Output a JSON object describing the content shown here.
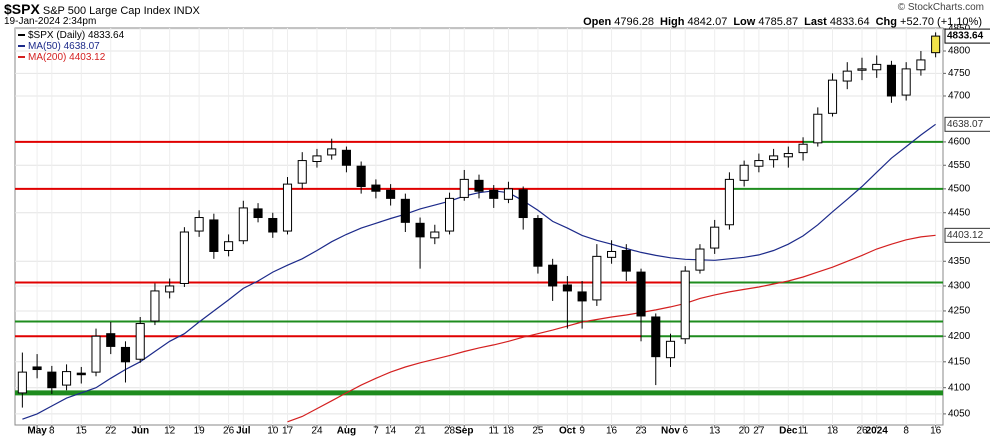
{
  "header": {
    "symbol": "$SPX",
    "name": "S&P 500 Large Cap Index",
    "exchange": "INDX",
    "date": "19-Jan-2024 2:34pm",
    "quote": [
      {
        "label": "Open",
        "value": "4796.28"
      },
      {
        "label": "High",
        "value": "4842.07"
      },
      {
        "label": "Low",
        "value": "4785.87"
      },
      {
        "label": "Last",
        "value": "4833.64"
      },
      {
        "label": "Chg",
        "value": "+52.70 (+1.10%)"
      }
    ],
    "watermark": "© StockCharts.com"
  },
  "chart_data": {
    "type": "candlestick",
    "name": "$SPX (Daily)",
    "last_label": "4833.64",
    "color": "#000000",
    "last_color": "#f2e24a",
    "categories": [
      null,
      "May",
      "8",
      null,
      "15",
      null,
      "22",
      null,
      "Jun",
      null,
      "12",
      null,
      "19",
      null,
      "26",
      "Jul",
      null,
      "10",
      "17",
      null,
      "24",
      null,
      "Aug",
      null,
      "7",
      "14",
      null,
      "21",
      null,
      "28",
      "Sep",
      null,
      "11",
      "18",
      null,
      "25",
      null,
      "Oct",
      "9",
      null,
      "16",
      null,
      "23",
      null,
      "Nov",
      "6",
      null,
      "13",
      null,
      "20",
      "27",
      null,
      "Dec",
      "11",
      null,
      "18",
      null,
      "26",
      "2024",
      null,
      "8",
      null,
      "16"
    ],
    "open": [
      4090,
      4140,
      4130,
      4105,
      4128,
      4130,
      4205,
      4178,
      4155,
      4230,
      4288,
      4305,
      4412,
      4435,
      4372,
      4392,
      4458,
      4438,
      4412,
      4512,
      4558,
      4572,
      4582,
      4548,
      4508,
      4497,
      4478,
      4428,
      4398,
      4412,
      4482,
      4518,
      4497,
      4478,
      4498,
      4438,
      4342,
      4302,
      4288,
      4272,
      4358,
      4372,
      4328,
      4238,
      4158,
      4195,
      4332,
      4377,
      4425,
      4518,
      4548,
      4562,
      4568,
      4577,
      4598,
      4662,
      4733,
      4757,
      4758,
      4768,
      4702,
      4758,
      4796.28
    ],
    "high": [
      4168,
      4165,
      4142,
      4145,
      4140,
      4215,
      4228,
      4190,
      4238,
      4305,
      4315,
      4420,
      4455,
      4448,
      4405,
      4475,
      4470,
      4450,
      4525,
      4578,
      4585,
      4607,
      4590,
      4558,
      4520,
      4510,
      4490,
      4440,
      4425,
      4492,
      4540,
      4530,
      4508,
      4515,
      4505,
      4445,
      4355,
      4320,
      4310,
      4385,
      4393,
      4385,
      4335,
      4245,
      4205,
      4340,
      4385,
      4435,
      4535,
      4560,
      4575,
      4585,
      4590,
      4610,
      4675,
      4750,
      4775,
      4785,
      4790,
      4778,
      4775,
      4800,
      4842.07
    ],
    "low": [
      4062,
      4118,
      4088,
      4095,
      4108,
      4122,
      4165,
      4110,
      4148,
      4222,
      4275,
      4298,
      4400,
      4355,
      4360,
      4385,
      4430,
      4398,
      4405,
      4500,
      4545,
      4562,
      4535,
      4490,
      4480,
      4465,
      4410,
      4335,
      4385,
      4405,
      4475,
      4480,
      4460,
      4470,
      4415,
      4325,
      4270,
      4215,
      4215,
      4260,
      4345,
      4310,
      4190,
      4105,
      4140,
      4185,
      4325,
      4365,
      4415,
      4505,
      4535,
      4545,
      4545,
      4560,
      4590,
      4655,
      4715,
      4735,
      4740,
      4685,
      4690,
      4745,
      4785.87
    ],
    "close": [
      4130,
      4135,
      4100,
      4131,
      4125,
      4200,
      4180,
      4150,
      4225,
      4290,
      4300,
      4410,
      4440,
      4370,
      4390,
      4460,
      4440,
      4410,
      4510,
      4560,
      4570,
      4585,
      4550,
      4505,
      4495,
      4480,
      4430,
      4400,
      4410,
      4480,
      4520,
      4495,
      4480,
      4500,
      4440,
      4340,
      4300,
      4290,
      4270,
      4360,
      4370,
      4330,
      4240,
      4160,
      4190,
      4330,
      4375,
      4420,
      4520,
      4550,
      4560,
      4570,
      4575,
      4595,
      4660,
      4735,
      4755,
      4760,
      4770,
      4700,
      4760,
      4780,
      4833.64
    ],
    "series": [
      {
        "name": "MA(50)",
        "color": "#1c2a8a",
        "last_label": "4638.07",
        "values": [
          4040,
          4050,
          4065,
          4080,
          4090,
          4100,
          4118,
          4135,
          4150,
          4170,
          4190,
          4205,
          4228,
          4250,
          4272,
          4295,
          4310,
          4328,
          4342,
          4355,
          4372,
          4390,
          4405,
          4418,
          4428,
          4438,
          4447,
          4458,
          4466,
          4474,
          4485,
          4492,
          4496,
          4492,
          4475,
          4455,
          4432,
          4418,
          4403,
          4393,
          4385,
          4376,
          4368,
          4362,
          4357,
          4354,
          4353,
          4352,
          4355,
          4358,
          4363,
          4372,
          4385,
          4402,
          4425,
          4452,
          4478,
          4505,
          4535,
          4565,
          4590,
          4615,
          4638.07
        ]
      },
      {
        "name": "MA(200)",
        "color": "#d42020",
        "last_label": "4403.12",
        "values": [
          null,
          null,
          null,
          null,
          null,
          null,
          null,
          null,
          null,
          null,
          null,
          null,
          null,
          null,
          null,
          null,
          null,
          null,
          4035,
          4045,
          4060,
          4075,
          4090,
          4105,
          4118,
          4130,
          4140,
          4148,
          4155,
          4162,
          4170,
          4177,
          4183,
          4190,
          4198,
          4205,
          4212,
          4220,
          4228,
          4233,
          4238,
          4242,
          4247,
          4252,
          4258,
          4265,
          4275,
          4282,
          4288,
          4293,
          4298,
          4304,
          4310,
          4318,
          4328,
          4338,
          4350,
          4362,
          4375,
          4385,
          4394,
          4400,
          4403.12
        ]
      }
    ],
    "levels": [
      {
        "value": 4600,
        "color": "#e00000",
        "color_after": "#1e8c1e",
        "change_index": 53,
        "line_width": 2
      },
      {
        "value": 4500,
        "color": "#e00000",
        "color_after": "#1e8c1e",
        "change_index": 48,
        "line_width": 2
      },
      {
        "value": 4307,
        "color": "#e00000",
        "color_after": "#1e8c1e",
        "change_index": 45,
        "line_width": 2
      },
      {
        "value": 4229,
        "color": "#1e8c1e",
        "color_after": "#1e8c1e",
        "change_index": 0,
        "line_width": 2
      },
      {
        "value": 4200,
        "color": "#e00000",
        "color_after": "#1e8c1e",
        "change_index": 42,
        "line_width": 2
      },
      {
        "value": 4090,
        "color": "#1e8c1e",
        "color_after": "#1e8c1e",
        "change_index": 0,
        "line_width": 5
      }
    ],
    "ylim": [
      4029,
      4852
    ],
    "yticks": [
      4050,
      4100,
      4150,
      4200,
      4250,
      4300,
      4350,
      4450,
      4500,
      4550,
      4600,
      4700,
      4750,
      4800,
      4850
    ],
    "log_scale": true,
    "grid": true,
    "legend": "top-left"
  }
}
